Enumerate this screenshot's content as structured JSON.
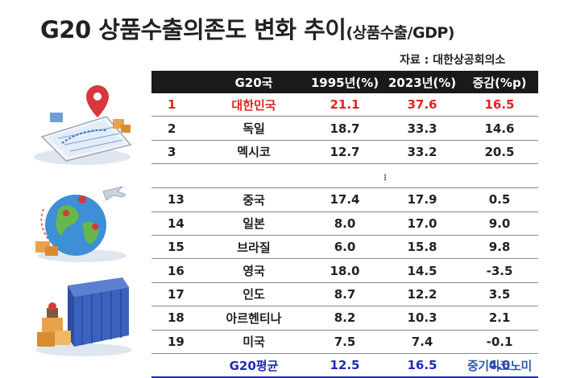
{
  "title": {
    "main": "G20 상품수출의존도 변화 추이",
    "sub": "(상품수출/GDP)"
  },
  "source": "자료 : 대한상공회의소",
  "table": {
    "headers": [
      "",
      "G20국",
      "1995년(%)",
      "2023년(%)",
      "증감(%p)"
    ],
    "top_rows": [
      {
        "rank": "1",
        "country": "대한민국",
        "y1995": "21.1",
        "y2023": "37.6",
        "change": "16.5",
        "highlight": true
      },
      {
        "rank": "2",
        "country": "독일",
        "y1995": "18.7",
        "y2023": "33.3",
        "change": "14.6"
      },
      {
        "rank": "3",
        "country": "멕시코",
        "y1995": "12.7",
        "y2023": "33.2",
        "change": "20.5"
      }
    ],
    "ellipsis": "⋮",
    "bottom_rows": [
      {
        "rank": "13",
        "country": "중국",
        "y1995": "17.4",
        "y2023": "17.9",
        "change": "0.5"
      },
      {
        "rank": "14",
        "country": "일본",
        "y1995": "8.0",
        "y2023": "17.0",
        "change": "9.0"
      },
      {
        "rank": "15",
        "country": "브라질",
        "y1995": "6.0",
        "y2023": "15.8",
        "change": "9.8"
      },
      {
        "rank": "16",
        "country": "영국",
        "y1995": "18.0",
        "y2023": "14.5",
        "change": "-3.5"
      },
      {
        "rank": "17",
        "country": "인도",
        "y1995": "8.7",
        "y2023": "12.2",
        "change": "3.5"
      },
      {
        "rank": "18",
        "country": "아르헨티나",
        "y1995": "8.2",
        "y2023": "10.3",
        "change": "2.1"
      },
      {
        "rank": "19",
        "country": "미국",
        "y1995": "7.5",
        "y2023": "7.4",
        "change": "-0.1"
      }
    ],
    "average": {
      "rank": "",
      "country": "G20평균",
      "y1995": "12.5",
      "y2023": "16.5",
      "change": "4.0"
    }
  },
  "logo": "중기이코노미",
  "colors": {
    "header_bg": "#1a1a1a",
    "highlight": "#e32222",
    "average": "#1f2bb5",
    "logo": "#2b5cab"
  },
  "icons": [
    "logistics-map-icon",
    "globe-logistics-icon",
    "shipping-container-icon"
  ]
}
